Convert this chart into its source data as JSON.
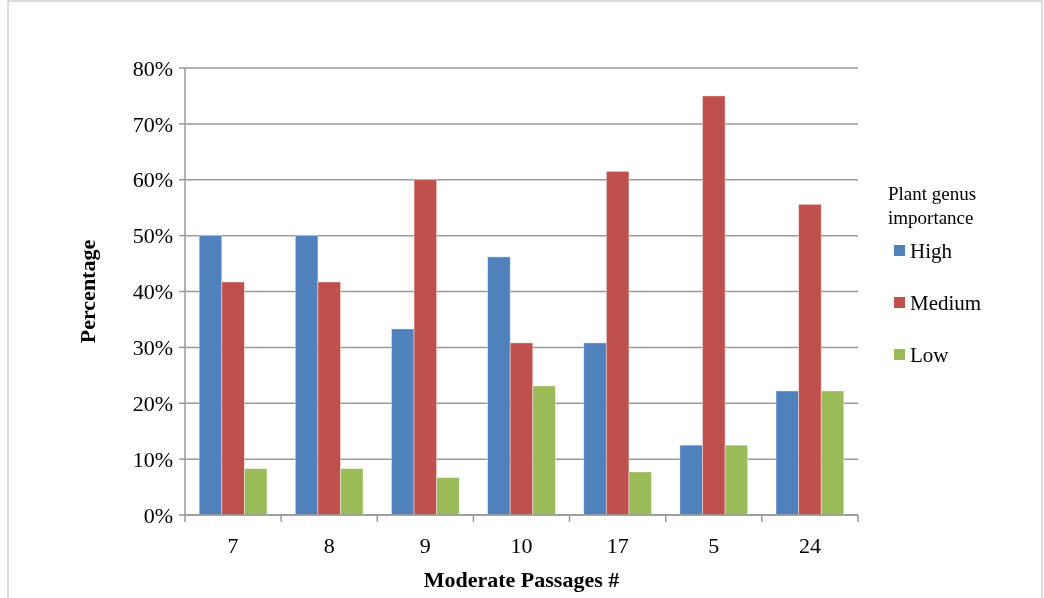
{
  "chart_data": {
    "type": "bar",
    "xlabel": "Moderate Passages #",
    "ylabel": "Percentage",
    "legend_title": "Plant genus importance",
    "categories": [
      "7",
      "8",
      "9",
      "10",
      "17",
      "5",
      "24"
    ],
    "series": [
      {
        "name": "High",
        "color": "#4f81bd",
        "values": [
          50,
          50,
          33.3,
          46.2,
          30.8,
          12.5,
          22.2
        ]
      },
      {
        "name": "Medium",
        "color": "#c0504d",
        "values": [
          41.7,
          41.7,
          60,
          30.8,
          61.5,
          75,
          55.6
        ]
      },
      {
        "name": "Low",
        "color": "#9bbb59",
        "values": [
          8.3,
          8.3,
          6.7,
          23.1,
          7.7,
          12.5,
          22.2
        ]
      }
    ],
    "ylim": [
      0,
      80
    ],
    "yticks": [
      {
        "value": 0,
        "label": "0%"
      },
      {
        "value": 10,
        "label": "10%"
      },
      {
        "value": 20,
        "label": "20%"
      },
      {
        "value": 30,
        "label": "30%"
      },
      {
        "value": 40,
        "label": "40%"
      },
      {
        "value": 50,
        "label": "50%"
      },
      {
        "value": 60,
        "label": "60%"
      },
      {
        "value": 70,
        "label": "70%"
      },
      {
        "value": 80,
        "label": "80%"
      }
    ],
    "grid": "y",
    "legend": "right"
  }
}
